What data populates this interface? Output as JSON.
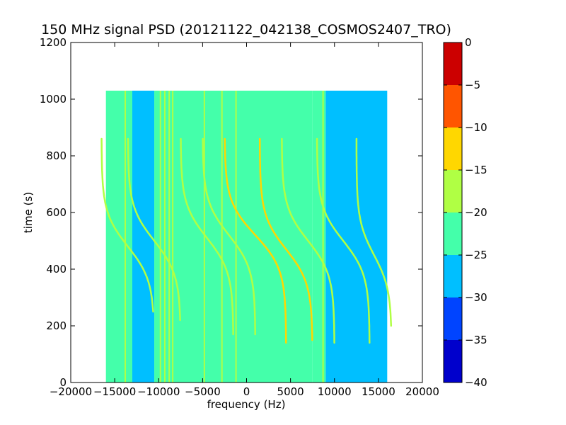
{
  "chart_data": {
    "type": "heatmap",
    "title": "150 MHz signal PSD (20121122_042138_COSMOS2407_TRO)",
    "xlabel": "frequency (Hz)",
    "ylabel": "time (s)",
    "xlim": [
      -20000,
      20000
    ],
    "ylim": [
      0,
      1200
    ],
    "x_ticks": [
      -20000,
      -15000,
      -10000,
      -5000,
      0,
      5000,
      10000,
      15000,
      20000
    ],
    "y_ticks": [
      0,
      200,
      400,
      600,
      800,
      1000,
      1200
    ],
    "data_extent": {
      "x": [
        -16000,
        16000
      ],
      "y": [
        0,
        1030
      ]
    },
    "colorbar": {
      "range": [
        -40,
        0
      ],
      "levels": [
        -40,
        -35,
        -30,
        -25,
        -20,
        -15,
        -10,
        -5,
        0
      ],
      "colors": [
        "#0000cc",
        "#0044ff",
        "#00bfff",
        "#44ffaa",
        "#b0ff44",
        "#ffd700",
        "#ff5500",
        "#cc0000"
      ]
    },
    "background_bands": [
      {
        "x": [
          -16000,
          -13000
        ],
        "level": -25
      },
      {
        "x": [
          -13000,
          -10500
        ],
        "level": -30
      },
      {
        "x": [
          -10500,
          7500
        ],
        "level": -22.5
      },
      {
        "x": [
          7500,
          9000
        ],
        "level": -25
      },
      {
        "x": [
          9000,
          16000
        ],
        "level": -30
      }
    ],
    "vertical_lines": [
      {
        "x": -13800,
        "level": -20
      },
      {
        "x": -9800,
        "level": -17
      },
      {
        "x": -9300,
        "level": -17
      },
      {
        "x": -8800,
        "level": -17
      },
      {
        "x": -8400,
        "level": -17
      },
      {
        "x": -4800,
        "level": -17
      },
      {
        "x": -2800,
        "level": -17
      },
      {
        "x": -1200,
        "level": -17
      },
      {
        "x": 8700,
        "level": -20
      }
    ],
    "tracks": [
      {
        "center": -13500,
        "amp": 3000,
        "t0": 480,
        "t_start": 250,
        "t_end": 860,
        "level": -20
      },
      {
        "center": -10500,
        "amp": 3000,
        "t0": 500,
        "t_start": 220,
        "t_end": 860,
        "level": -20
      },
      {
        "center": -4500,
        "amp": 3000,
        "t0": 510,
        "t_start": 170,
        "t_end": 860,
        "level": -17
      },
      {
        "center": -2000,
        "amp": 3000,
        "t0": 520,
        "t_start": 170,
        "t_end": 860,
        "level": -17
      },
      {
        "center": 1000,
        "amp": 3500,
        "t0": 520,
        "t_start": 140,
        "t_end": 860,
        "level": -12
      },
      {
        "center": 4500,
        "amp": 3000,
        "t0": 470,
        "t_start": 150,
        "t_end": 860,
        "level": -12
      },
      {
        "center": 7000,
        "amp": 3000,
        "t0": 500,
        "t_start": 140,
        "t_end": 860,
        "level": -17
      },
      {
        "center": 11000,
        "amp": 3000,
        "t0": 500,
        "t_start": 140,
        "t_end": 860,
        "level": -20
      },
      {
        "center": 14500,
        "amp": 2000,
        "t0": 450,
        "t_start": 200,
        "t_end": 860,
        "level": -20
      }
    ]
  }
}
